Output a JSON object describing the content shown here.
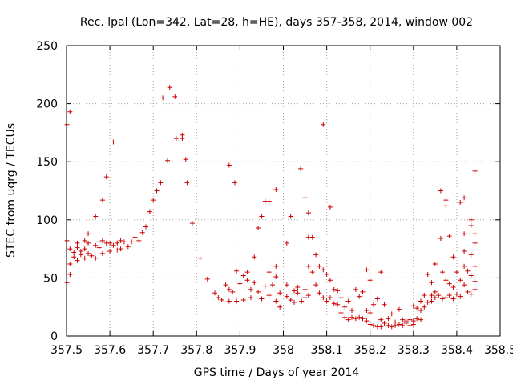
{
  "chart_data": {
    "type": "scatter",
    "title": "Rec. lpal (Lon=342, Lat=28, h=HE), days 357-358, 2014, window 002",
    "xlabel": "GPS time / Days of year 2014",
    "ylabel": "STEC from uqrg / TECUs",
    "xlim": [
      357.5,
      358.5
    ],
    "ylim": [
      0,
      250
    ],
    "x_ticks": [
      "357.5",
      "357.6",
      "357.7",
      "357.8",
      "357.9",
      "358",
      "358.1",
      "358.2",
      "358.3",
      "358.4",
      "358.5"
    ],
    "y_ticks": [
      "0",
      "50",
      "100",
      "150",
      "200",
      "250"
    ],
    "grid": true,
    "marker": "+",
    "marker_color": "#cc0000",
    "points": [
      [
        357.501,
        182
      ],
      [
        357.501,
        82
      ],
      [
        357.501,
        46
      ],
      [
        357.508,
        193
      ],
      [
        357.508,
        75
      ],
      [
        357.508,
        62
      ],
      [
        357.508,
        53
      ],
      [
        357.517,
        68
      ],
      [
        357.517,
        72
      ],
      [
        357.525,
        80
      ],
      [
        357.525,
        76
      ],
      [
        357.525,
        65
      ],
      [
        357.533,
        73
      ],
      [
        357.533,
        70
      ],
      [
        357.542,
        82
      ],
      [
        357.542,
        75
      ],
      [
        357.542,
        67
      ],
      [
        357.55,
        88
      ],
      [
        357.55,
        80
      ],
      [
        357.55,
        71
      ],
      [
        357.558,
        69
      ],
      [
        357.567,
        103
      ],
      [
        357.567,
        78
      ],
      [
        357.567,
        67
      ],
      [
        357.575,
        81
      ],
      [
        357.575,
        76
      ],
      [
        357.583,
        117
      ],
      [
        357.583,
        82
      ],
      [
        357.583,
        71
      ],
      [
        357.592,
        137
      ],
      [
        357.592,
        80
      ],
      [
        357.6,
        80
      ],
      [
        357.6,
        73
      ],
      [
        357.608,
        167
      ],
      [
        357.608,
        78
      ],
      [
        357.617,
        80
      ],
      [
        357.617,
        74
      ],
      [
        357.625,
        82
      ],
      [
        357.625,
        75
      ],
      [
        357.633,
        81
      ],
      [
        357.642,
        77
      ],
      [
        357.65,
        81
      ],
      [
        357.658,
        85
      ],
      [
        357.667,
        82
      ],
      [
        357.675,
        89
      ],
      [
        357.683,
        94
      ],
      [
        357.692,
        107
      ],
      [
        357.7,
        117
      ],
      [
        357.708,
        125
      ],
      [
        357.717,
        132
      ],
      [
        357.722,
        205
      ],
      [
        357.733,
        151
      ],
      [
        357.738,
        214
      ],
      [
        357.75,
        206
      ],
      [
        357.753,
        170
      ],
      [
        357.767,
        173
      ],
      [
        357.767,
        170
      ],
      [
        357.775,
        152
      ],
      [
        357.778,
        132
      ],
      [
        357.79,
        97
      ],
      [
        357.808,
        67
      ],
      [
        357.825,
        49
      ],
      [
        357.842,
        37
      ],
      [
        357.85,
        33
      ],
      [
        357.858,
        31
      ],
      [
        357.867,
        44
      ],
      [
        357.875,
        147
      ],
      [
        357.875,
        40
      ],
      [
        357.875,
        30
      ],
      [
        357.883,
        38
      ],
      [
        357.888,
        132
      ],
      [
        357.892,
        56
      ],
      [
        357.892,
        30
      ],
      [
        357.9,
        45
      ],
      [
        357.908,
        52
      ],
      [
        357.908,
        31
      ],
      [
        357.917,
        55
      ],
      [
        357.917,
        48
      ],
      [
        357.925,
        40
      ],
      [
        357.925,
        33
      ],
      [
        357.933,
        68
      ],
      [
        357.933,
        46
      ],
      [
        357.942,
        93
      ],
      [
        357.942,
        38
      ],
      [
        357.95,
        103
      ],
      [
        357.95,
        32
      ],
      [
        357.958,
        116
      ],
      [
        357.958,
        43
      ],
      [
        357.967,
        116
      ],
      [
        357.967,
        55
      ],
      [
        357.967,
        35
      ],
      [
        357.975,
        44
      ],
      [
        357.983,
        126
      ],
      [
        357.983,
        60
      ],
      [
        357.983,
        51
      ],
      [
        357.983,
        30
      ],
      [
        357.992,
        37
      ],
      [
        357.992,
        25
      ],
      [
        358.008,
        80
      ],
      [
        358.008,
        44
      ],
      [
        358.008,
        34
      ],
      [
        358.017,
        103
      ],
      [
        358.017,
        31
      ],
      [
        358.025,
        39
      ],
      [
        358.025,
        29
      ],
      [
        358.033,
        42
      ],
      [
        358.033,
        37
      ],
      [
        358.04,
        144
      ],
      [
        358.042,
        30
      ],
      [
        358.05,
        119
      ],
      [
        358.05,
        40
      ],
      [
        358.05,
        33
      ],
      [
        358.058,
        106
      ],
      [
        358.058,
        85
      ],
      [
        358.058,
        60
      ],
      [
        358.058,
        35
      ],
      [
        358.067,
        85
      ],
      [
        358.067,
        55
      ],
      [
        358.075,
        70
      ],
      [
        358.075,
        44
      ],
      [
        358.083,
        60
      ],
      [
        358.083,
        37
      ],
      [
        358.092,
        182
      ],
      [
        358.092,
        57
      ],
      [
        358.092,
        33
      ],
      [
        358.1,
        53
      ],
      [
        358.1,
        30
      ],
      [
        358.108,
        111
      ],
      [
        358.108,
        48
      ],
      [
        358.108,
        33
      ],
      [
        358.117,
        40
      ],
      [
        358.117,
        28
      ],
      [
        358.125,
        39
      ],
      [
        358.125,
        27
      ],
      [
        358.133,
        33
      ],
      [
        358.133,
        20
      ],
      [
        358.142,
        16
      ],
      [
        358.142,
        25
      ],
      [
        358.15,
        30
      ],
      [
        358.15,
        14
      ],
      [
        358.158,
        16
      ],
      [
        358.158,
        22
      ],
      [
        358.167,
        40
      ],
      [
        358.167,
        15
      ],
      [
        358.175,
        34
      ],
      [
        358.175,
        16
      ],
      [
        358.183,
        38
      ],
      [
        358.183,
        15
      ],
      [
        358.192,
        57
      ],
      [
        358.192,
        22
      ],
      [
        358.192,
        13
      ],
      [
        358.2,
        48
      ],
      [
        358.2,
        20
      ],
      [
        358.2,
        10
      ],
      [
        358.208,
        27
      ],
      [
        358.208,
        9
      ],
      [
        358.217,
        32
      ],
      [
        358.217,
        8
      ],
      [
        358.225,
        55
      ],
      [
        358.225,
        14
      ],
      [
        358.225,
        8
      ],
      [
        358.233,
        27
      ],
      [
        358.233,
        11
      ],
      [
        358.242,
        15
      ],
      [
        358.242,
        9
      ],
      [
        358.25,
        19
      ],
      [
        358.25,
        8
      ],
      [
        358.258,
        12
      ],
      [
        358.258,
        9
      ],
      [
        358.267,
        23
      ],
      [
        358.267,
        10
      ],
      [
        358.275,
        14
      ],
      [
        358.275,
        9
      ],
      [
        358.283,
        13
      ],
      [
        358.283,
        11
      ],
      [
        358.292,
        9
      ],
      [
        358.292,
        14
      ],
      [
        358.3,
        26
      ],
      [
        358.3,
        13
      ],
      [
        358.3,
        10
      ],
      [
        358.308,
        24
      ],
      [
        358.308,
        15
      ],
      [
        358.317,
        30
      ],
      [
        358.317,
        22
      ],
      [
        358.317,
        14
      ],
      [
        358.325,
        35
      ],
      [
        358.325,
        25
      ],
      [
        358.333,
        53
      ],
      [
        358.333,
        29
      ],
      [
        358.342,
        46
      ],
      [
        358.342,
        35
      ],
      [
        358.342,
        30
      ],
      [
        358.35,
        62
      ],
      [
        358.35,
        38
      ],
      [
        358.35,
        33
      ],
      [
        358.358,
        35
      ],
      [
        358.363,
        125
      ],
      [
        358.363,
        84
      ],
      [
        358.367,
        55
      ],
      [
        358.367,
        32
      ],
      [
        358.375,
        117
      ],
      [
        358.375,
        112
      ],
      [
        358.375,
        48
      ],
      [
        358.375,
        33
      ],
      [
        358.383,
        86
      ],
      [
        358.383,
        45
      ],
      [
        358.383,
        35
      ],
      [
        358.392,
        68
      ],
      [
        358.392,
        42
      ],
      [
        358.392,
        32
      ],
      [
        358.4,
        55
      ],
      [
        358.4,
        36
      ],
      [
        358.408,
        115
      ],
      [
        358.408,
        48
      ],
      [
        358.408,
        34
      ],
      [
        358.417,
        119
      ],
      [
        358.417,
        88
      ],
      [
        358.417,
        73
      ],
      [
        358.417,
        60
      ],
      [
        358.417,
        44
      ],
      [
        358.425,
        56
      ],
      [
        358.425,
        38
      ],
      [
        358.433,
        100
      ],
      [
        358.433,
        95
      ],
      [
        358.433,
        70
      ],
      [
        358.433,
        52
      ],
      [
        358.433,
        36
      ],
      [
        358.442,
        142
      ],
      [
        358.442,
        88
      ],
      [
        358.442,
        80
      ],
      [
        358.442,
        60
      ],
      [
        358.442,
        47
      ],
      [
        358.442,
        40
      ]
    ]
  }
}
